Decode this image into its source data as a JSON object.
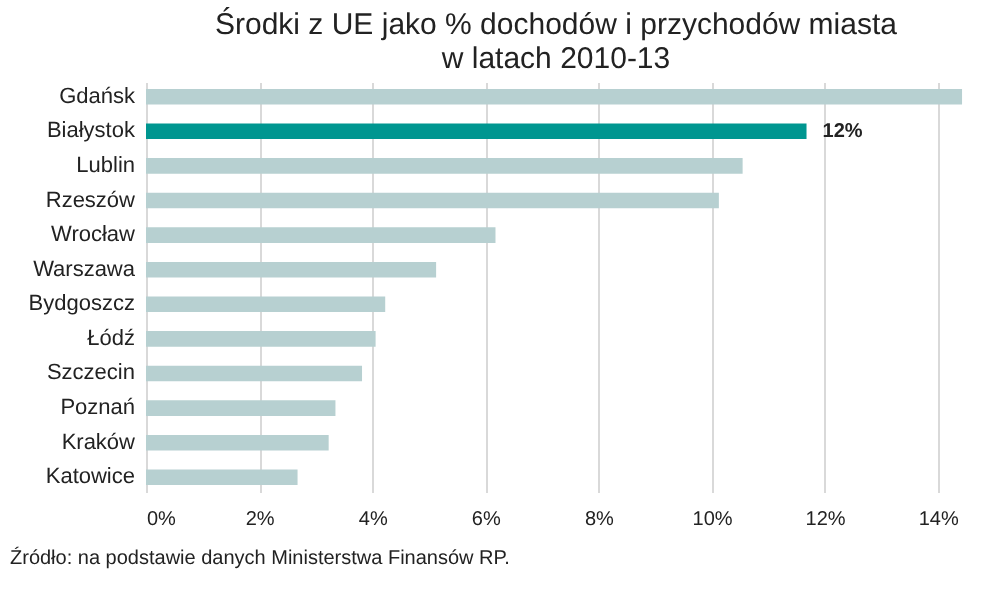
{
  "chart_data": {
    "type": "bar",
    "orientation": "horizontal",
    "title": [
      "Środki z UE jako % dochodów i przychodów miasta",
      "w latach 2010-13"
    ],
    "categories": [
      "Gdańsk",
      "Białystok",
      "Lublin",
      "Rzeszów",
      "Wrocław",
      "Warszawa",
      "Bydgoszcz",
      "Łódź",
      "Szczecin",
      "Poznań",
      "Kraków",
      "Katowice"
    ],
    "values": [
      14.43,
      11.68,
      10.55,
      10.13,
      6.18,
      5.13,
      4.23,
      4.06,
      3.82,
      3.35,
      3.23,
      2.68
    ],
    "colors": [
      "#b7d0d1",
      "#009690",
      "#b7d0d1",
      "#b7d0d1",
      "#b7d0d1",
      "#b7d0d1",
      "#b7d0d1",
      "#b7d0d1",
      "#b7d0d1",
      "#b7d0d1",
      "#b7d0d1",
      "#b7d0d1"
    ],
    "value_labels": [
      null,
      "12%",
      null,
      null,
      null,
      null,
      null,
      null,
      null,
      null,
      null,
      null
    ],
    "xlim": [
      0,
      14.5
    ],
    "xticks": [
      {
        "value": 0,
        "label": "0%"
      },
      {
        "value": 2,
        "label": "2%"
      },
      {
        "value": 4,
        "label": "4%"
      },
      {
        "value": 6,
        "label": "6%"
      },
      {
        "value": 8,
        "label": "8%"
      },
      {
        "value": 10,
        "label": "10%"
      },
      {
        "value": 12,
        "label": "12%"
      },
      {
        "value": 14,
        "label": "14%"
      }
    ],
    "grid": "x",
    "annotations": [
      "Źródło: na podstawie danych Ministerstwa Finansów RP."
    ]
  }
}
